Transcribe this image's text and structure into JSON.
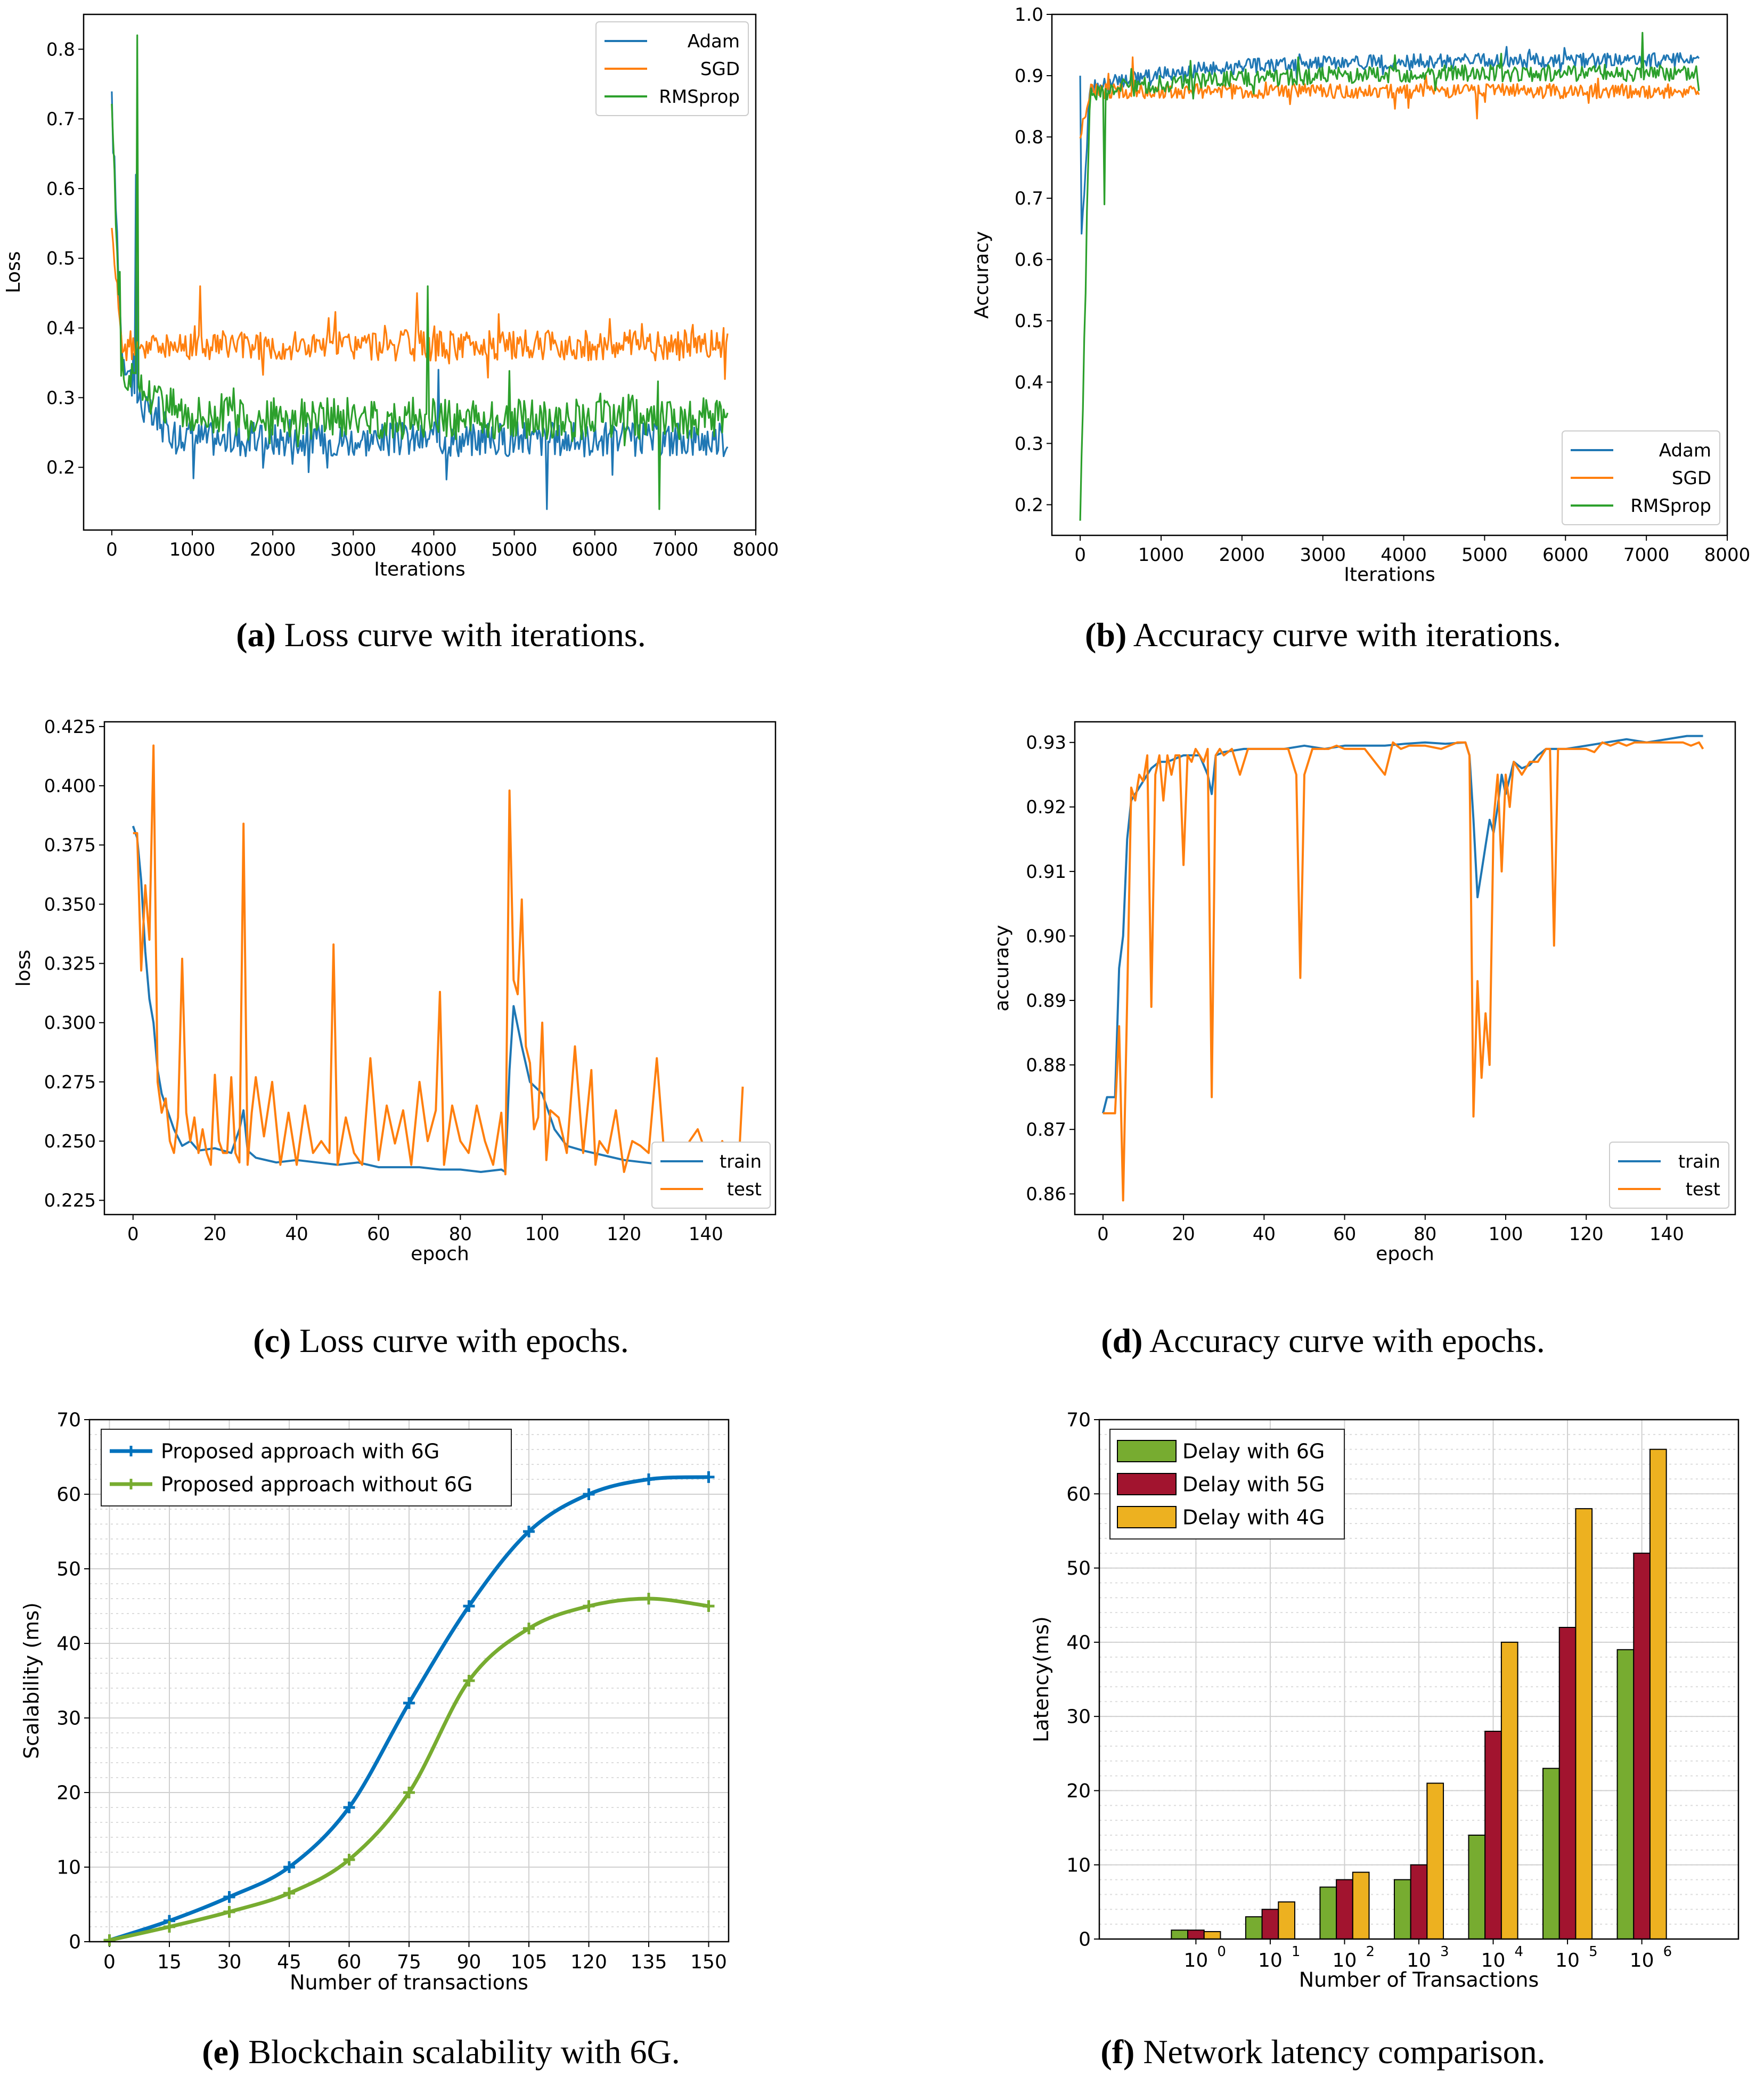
{
  "colors": {
    "adam": "#1f77b4",
    "sgd": "#ff7f0e",
    "rmsprop": "#2ca02c",
    "train": "#1f77b4",
    "test": "#ff7f0e",
    "with6g": "#0072BD",
    "without6g": "#77AC30",
    "delay6g": "#77AC30",
    "delay5g": "#A2142F",
    "delay4g": "#EDB120"
  },
  "captions": {
    "a": {
      "tag": "(a)",
      "text": "Loss curve with iterations."
    },
    "b": {
      "tag": "(b)",
      "text": "Accuracy curve with iterations."
    },
    "c": {
      "tag": "(c)",
      "text": "Loss curve with epochs."
    },
    "d": {
      "tag": "(d)",
      "text": "Accuracy curve with epochs."
    },
    "e": {
      "tag": "(e)",
      "text": "Blockchain scalability with 6G."
    },
    "f": {
      "tag": "(f)",
      "text": "Network latency comparison."
    }
  },
  "chart_data": [
    {
      "id": "a",
      "type": "line",
      "xlabel": "Iterations",
      "ylabel": "Loss",
      "xlim": [
        -350,
        8000
      ],
      "ylim": [
        0.11,
        0.85
      ],
      "xticks": [
        0,
        1000,
        2000,
        3000,
        4000,
        5000,
        6000,
        7000,
        8000
      ],
      "yticks": [
        0.2,
        0.3,
        0.4,
        0.5,
        0.6,
        0.7,
        0.8
      ],
      "legend_position": "top-right",
      "x_range": [
        0,
        7650
      ],
      "series": [
        {
          "name": "Adam",
          "color_key": "adam",
          "start": 0.72,
          "plateau": 0.24,
          "decay": 0.004,
          "start_plateau": 0.38,
          "noise": 0.025,
          "spikes": [
            [
              300,
              0.62
            ],
            [
              5400,
              0.14
            ],
            [
              4050,
              0.34
            ]
          ]
        },
        {
          "name": "SGD",
          "color_key": "sgd",
          "start": 0.56,
          "plateau": 0.375,
          "decay": 0.02,
          "start_plateau": 0.375,
          "noise": 0.022,
          "spikes": [
            [
              1100,
              0.46
            ],
            [
              3800,
              0.45
            ],
            [
              7600,
              0.4
            ]
          ]
        },
        {
          "name": "RMSprop",
          "color_key": "rmsprop",
          "start": 0.73,
          "plateau": 0.27,
          "decay": 0.002,
          "start_plateau": 0.34,
          "noise": 0.03,
          "spikes": [
            [
              310,
              0.82
            ],
            [
              3920,
              0.46
            ],
            [
              6800,
              0.14
            ]
          ]
        }
      ]
    },
    {
      "id": "b",
      "type": "line",
      "xlabel": "Iterations",
      "ylabel": "Accuracy",
      "xlim": [
        -350,
        8000
      ],
      "ylim": [
        0.15,
        1.0
      ],
      "xticks": [
        0,
        1000,
        2000,
        3000,
        4000,
        5000,
        6000,
        7000,
        8000
      ],
      "yticks": [
        0.2,
        0.3,
        0.4,
        0.5,
        0.6,
        0.7,
        0.8,
        0.9,
        1.0
      ],
      "legend_position": "bottom-right",
      "x_range": [
        0,
        7650
      ],
      "series": [
        {
          "name": "Adam",
          "color_key": "adam",
          "start": 0.6,
          "plateau": 0.925,
          "decay": 0.0008,
          "start_plateau": 0.88,
          "noise": 0.012,
          "spikes": [
            [
              5,
              0.9
            ]
          ]
        },
        {
          "name": "SGD",
          "color_key": "sgd",
          "start": 0.8,
          "plateau": 0.875,
          "decay": 0.05,
          "start_plateau": 0.875,
          "noise": 0.012,
          "spikes": [
            [
              650,
              0.93
            ],
            [
              4900,
              0.83
            ]
          ]
        },
        {
          "name": "RMSprop",
          "color_key": "rmsprop",
          "start": 0.17,
          "plateau": 0.905,
          "decay": 0.0007,
          "start_plateau": 0.87,
          "noise": 0.014,
          "spikes": [
            [
              300,
              0.69
            ],
            [
              6950,
              0.97
            ]
          ]
        }
      ]
    },
    {
      "id": "c",
      "type": "line",
      "xlabel": "epoch",
      "ylabel": "loss",
      "xlim": [
        -7,
        157
      ],
      "ylim": [
        0.219,
        0.427
      ],
      "xticks": [
        0,
        20,
        40,
        60,
        80,
        100,
        120,
        140
      ],
      "yticks": [
        0.225,
        0.25,
        0.275,
        0.3,
        0.325,
        0.35,
        0.375,
        0.4,
        0.425
      ],
      "legend_position": "bottom-right",
      "series": [
        {
          "name": "train",
          "color_key": "train",
          "x": [
            0,
            1,
            2,
            3,
            4,
            5,
            6,
            7,
            8,
            9,
            10,
            12,
            14,
            16,
            20,
            24,
            26,
            27,
            28,
            30,
            35,
            40,
            45,
            50,
            55,
            60,
            65,
            70,
            75,
            80,
            85,
            90,
            91,
            92,
            93,
            95,
            97,
            100,
            103,
            106,
            110,
            115,
            120,
            125,
            130,
            135,
            140,
            145,
            149
          ],
          "y": [
            0.383,
            0.378,
            0.36,
            0.33,
            0.31,
            0.3,
            0.28,
            0.27,
            0.265,
            0.26,
            0.255,
            0.248,
            0.25,
            0.246,
            0.247,
            0.245,
            0.255,
            0.263,
            0.246,
            0.243,
            0.241,
            0.242,
            0.241,
            0.24,
            0.241,
            0.239,
            0.239,
            0.239,
            0.238,
            0.238,
            0.237,
            0.238,
            0.237,
            0.28,
            0.307,
            0.29,
            0.275,
            0.27,
            0.255,
            0.248,
            0.246,
            0.244,
            0.242,
            0.241,
            0.24,
            0.237,
            0.236,
            0.235,
            0.234
          ]
        },
        {
          "name": "test",
          "color_key": "test",
          "x": [
            0,
            1,
            2,
            3,
            4,
            5,
            6,
            7,
            8,
            9,
            10,
            11,
            12,
            13,
            14,
            15,
            16,
            17,
            18,
            19,
            20,
            21,
            22,
            23,
            24,
            25,
            26,
            27,
            28,
            29,
            30,
            32,
            34,
            36,
            38,
            40,
            42,
            44,
            46,
            48,
            49,
            50,
            52,
            54,
            56,
            58,
            60,
            62,
            64,
            66,
            68,
            70,
            72,
            74,
            75,
            76,
            78,
            80,
            82,
            84,
            86,
            88,
            90,
            91,
            92,
            93,
            94,
            95,
            96,
            97,
            98,
            99,
            100,
            101,
            102,
            104,
            106,
            108,
            110,
            112,
            113,
            114,
            116,
            118,
            120,
            122,
            124,
            126,
            128,
            130,
            132,
            134,
            136,
            138,
            140,
            142,
            144,
            146,
            148,
            149
          ],
          "y": [
            0.38,
            0.38,
            0.322,
            0.358,
            0.335,
            0.417,
            0.275,
            0.262,
            0.268,
            0.25,
            0.245,
            0.26,
            0.327,
            0.262,
            0.25,
            0.26,
            0.245,
            0.255,
            0.245,
            0.24,
            0.278,
            0.25,
            0.245,
            0.245,
            0.277,
            0.245,
            0.241,
            0.384,
            0.24,
            0.262,
            0.277,
            0.252,
            0.275,
            0.24,
            0.262,
            0.24,
            0.265,
            0.245,
            0.25,
            0.245,
            0.333,
            0.24,
            0.26,
            0.245,
            0.24,
            0.285,
            0.242,
            0.265,
            0.249,
            0.263,
            0.24,
            0.275,
            0.25,
            0.263,
            0.313,
            0.24,
            0.265,
            0.25,
            0.245,
            0.265,
            0.25,
            0.24,
            0.262,
            0.236,
            0.398,
            0.318,
            0.312,
            0.352,
            0.29,
            0.283,
            0.255,
            0.26,
            0.3,
            0.242,
            0.263,
            0.26,
            0.245,
            0.29,
            0.245,
            0.28,
            0.24,
            0.25,
            0.245,
            0.263,
            0.237,
            0.25,
            0.248,
            0.245,
            0.285,
            0.24,
            0.245,
            0.238,
            0.25,
            0.255,
            0.245,
            0.24,
            0.25,
            0.24,
            0.24,
            0.273
          ]
        }
      ]
    },
    {
      "id": "d",
      "type": "line",
      "xlabel": "epoch",
      "ylabel": "accuracy",
      "xlim": [
        -7,
        157
      ],
      "ylim": [
        0.8568,
        0.9332
      ],
      "xticks": [
        0,
        20,
        40,
        60,
        80,
        100,
        120,
        140
      ],
      "yticks": [
        0.86,
        0.87,
        0.88,
        0.89,
        0.9,
        0.91,
        0.92,
        0.93
      ],
      "legend_position": "bottom-right",
      "series": [
        {
          "name": "train",
          "color_key": "train",
          "x": [
            0,
            1,
            2,
            3,
            4,
            5,
            6,
            7,
            8,
            10,
            12,
            14,
            16,
            20,
            24,
            26,
            27,
            28,
            30,
            35,
            40,
            45,
            50,
            55,
            60,
            65,
            70,
            75,
            80,
            85,
            90,
            91,
            92,
            93,
            94,
            95,
            96,
            97,
            98,
            99,
            100,
            102,
            104,
            106,
            108,
            110,
            115,
            120,
            125,
            130,
            135,
            140,
            145,
            149
          ],
          "y": [
            0.8725,
            0.875,
            0.875,
            0.875,
            0.895,
            0.9,
            0.915,
            0.921,
            0.922,
            0.924,
            0.926,
            0.927,
            0.927,
            0.928,
            0.928,
            0.925,
            0.922,
            0.928,
            0.9285,
            0.929,
            0.929,
            0.929,
            0.9295,
            0.929,
            0.9295,
            0.9295,
            0.9295,
            0.9298,
            0.93,
            0.9298,
            0.93,
            0.928,
            0.918,
            0.906,
            0.91,
            0.914,
            0.918,
            0.916,
            0.92,
            0.925,
            0.922,
            0.927,
            0.926,
            0.9265,
            0.928,
            0.929,
            0.929,
            0.9295,
            0.93,
            0.9305,
            0.93,
            0.9305,
            0.931,
            0.931
          ]
        },
        {
          "name": "test",
          "color_key": "test",
          "x": [
            0,
            1,
            2,
            3,
            4,
            5,
            6,
            7,
            8,
            9,
            10,
            11,
            12,
            13,
            14,
            15,
            16,
            17,
            18,
            19,
            20,
            21,
            22,
            23,
            24,
            25,
            26,
            27,
            28,
            29,
            30,
            32,
            34,
            36,
            38,
            40,
            42,
            44,
            46,
            48,
            49,
            50,
            52,
            54,
            56,
            58,
            60,
            65,
            70,
            72,
            74,
            76,
            78,
            80,
            84,
            88,
            90,
            91,
            92,
            93,
            94,
            95,
            96,
            97,
            98,
            99,
            100,
            101,
            102,
            104,
            106,
            108,
            110,
            111,
            112,
            113,
            114,
            116,
            118,
            120,
            122,
            124,
            126,
            128,
            130,
            132,
            134,
            136,
            138,
            140,
            142,
            144,
            146,
            148,
            149
          ],
          "y": [
            0.8725,
            0.8725,
            0.8725,
            0.8725,
            0.886,
            0.859,
            0.89,
            0.923,
            0.921,
            0.925,
            0.924,
            0.928,
            0.889,
            0.925,
            0.928,
            0.921,
            0.928,
            0.925,
            0.928,
            0.928,
            0.911,
            0.928,
            0.927,
            0.929,
            0.928,
            0.927,
            0.929,
            0.875,
            0.928,
            0.929,
            0.928,
            0.929,
            0.925,
            0.929,
            0.929,
            0.929,
            0.929,
            0.929,
            0.929,
            0.925,
            0.8935,
            0.925,
            0.929,
            0.929,
            0.929,
            0.9295,
            0.929,
            0.929,
            0.925,
            0.93,
            0.929,
            0.9295,
            0.9295,
            0.9295,
            0.929,
            0.93,
            0.93,
            0.928,
            0.872,
            0.893,
            0.878,
            0.888,
            0.88,
            0.918,
            0.925,
            0.91,
            0.925,
            0.92,
            0.927,
            0.925,
            0.927,
            0.927,
            0.929,
            0.929,
            0.8985,
            0.929,
            0.929,
            0.929,
            0.929,
            0.929,
            0.9285,
            0.93,
            0.9295,
            0.93,
            0.9295,
            0.93,
            0.93,
            0.93,
            0.93,
            0.93,
            0.93,
            0.93,
            0.9295,
            0.93,
            0.929
          ]
        }
      ]
    },
    {
      "id": "e",
      "type": "line",
      "xlabel": "Number of transactions",
      "ylabel": "Scalability (ms)",
      "xlim": [
        -5,
        155
      ],
      "ylim": [
        0,
        70
      ],
      "xticks": [
        0,
        15,
        30,
        45,
        60,
        75,
        90,
        105,
        120,
        135,
        150
      ],
      "yticks": [
        0,
        10,
        20,
        30,
        40,
        50,
        60,
        70
      ],
      "grid": true,
      "legend_position": "top-left",
      "series": [
        {
          "name": "Proposed approach with 6G",
          "color_key": "with6g",
          "x": [
            0,
            15,
            30,
            45,
            60,
            75,
            90,
            105,
            120,
            135,
            150
          ],
          "values": [
            0.2,
            2.8,
            6,
            10,
            18,
            32,
            45,
            55,
            60,
            62,
            62.3
          ]
        },
        {
          "name": "Proposed approach without 6G",
          "color_key": "without6g",
          "x": [
            0,
            15,
            30,
            45,
            60,
            75,
            90,
            105,
            120,
            135,
            150
          ],
          "values": [
            0.2,
            2,
            4,
            6.5,
            11,
            20,
            35,
            42,
            45,
            46,
            45
          ]
        }
      ]
    },
    {
      "id": "f",
      "type": "bar",
      "xlabel": "Number of Transactions",
      "ylabel": "Latency(ms)",
      "ylim": [
        0,
        70
      ],
      "yticks": [
        0,
        10,
        20,
        30,
        40,
        50,
        60,
        70
      ],
      "grid": true,
      "legend_position": "top-left",
      "category_base": "10",
      "category_exponents": [
        "0",
        "1",
        "2",
        "3",
        "4",
        "5",
        "6"
      ],
      "series": [
        {
          "name": "Delay with 6G",
          "color_key": "delay6g",
          "values": [
            1.2,
            3,
            7,
            8,
            14,
            23,
            39
          ]
        },
        {
          "name": "Delay with 5G",
          "color_key": "delay5g",
          "values": [
            1.2,
            4,
            8,
            10,
            28,
            42,
            52
          ]
        },
        {
          "name": "Delay with 4G",
          "color_key": "delay4g",
          "values": [
            1,
            5,
            9,
            21,
            40,
            58,
            66
          ]
        }
      ]
    }
  ]
}
